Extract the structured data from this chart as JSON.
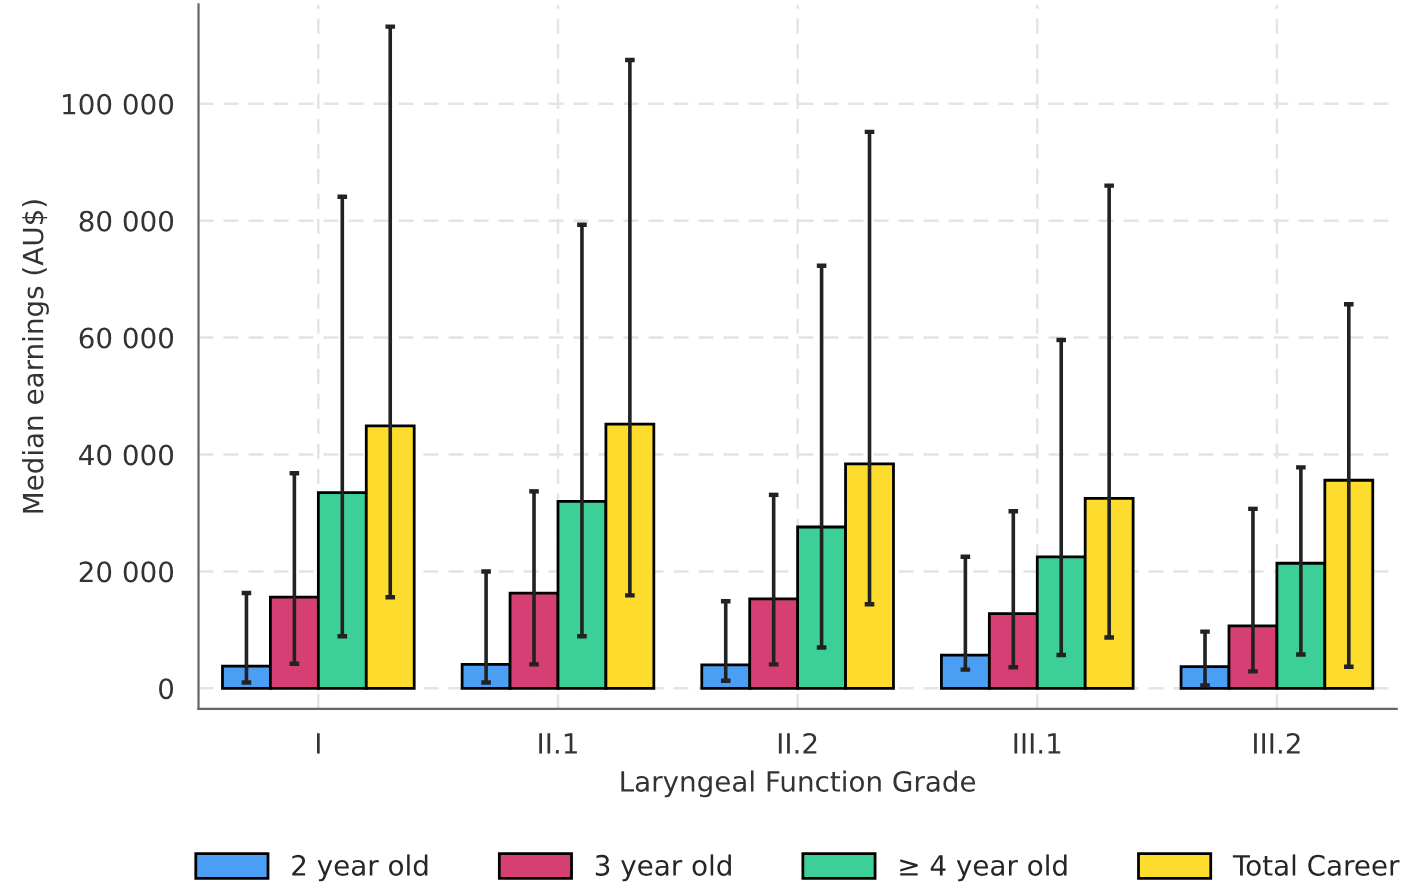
{
  "chart_data": {
    "type": "bar",
    "xlabel": "Laryngeal Function Grade",
    "ylabel": "Median earnings (AU$)",
    "categories": [
      "I",
      "II.1",
      "II.2",
      "III.1",
      "III.2"
    ],
    "series": [
      {
        "name": "2 year old",
        "color": "#4a9ff5",
        "values": [
          3800,
          4100,
          4000,
          5700,
          3700
        ],
        "errors": [
          [
            1000,
            16300
          ],
          [
            1000,
            20000
          ],
          [
            1300,
            14900
          ],
          [
            3200,
            22500
          ],
          [
            500,
            9700
          ]
        ]
      },
      {
        "name": "3 year old",
        "color": "#d63f74",
        "values": [
          15600,
          16300,
          15300,
          12800,
          10700
        ],
        "errors": [
          [
            4200,
            36800
          ],
          [
            4100,
            33700
          ],
          [
            4100,
            33100
          ],
          [
            3600,
            30300
          ],
          [
            2900,
            30700
          ]
        ]
      },
      {
        "name": "≥ 4 year old",
        "color": "#3ccf98",
        "values": [
          33500,
          32000,
          27600,
          22500,
          21400
        ],
        "errors": [
          [
            8900,
            84100
          ],
          [
            8900,
            79300
          ],
          [
            7000,
            72300
          ],
          [
            5700,
            59600
          ],
          [
            5800,
            37800
          ]
        ]
      },
      {
        "name": "Total Career",
        "color": "#fddc2d",
        "values": [
          44900,
          45200,
          38400,
          32500,
          35600
        ],
        "errors": [
          [
            15600,
            113200
          ],
          [
            15900,
            107500
          ],
          [
            14400,
            95200
          ],
          [
            8700,
            86000
          ],
          [
            3700,
            65700
          ]
        ]
      }
    ],
    "ylim": [
      -3500,
      117000
    ],
    "yticks": [
      {
        "value": 0,
        "label": "0"
      },
      {
        "value": 20000,
        "label": "20 000"
      },
      {
        "value": 40000,
        "label": "40 000"
      },
      {
        "value": 60000,
        "label": "60 000"
      },
      {
        "value": 80000,
        "label": "80 000"
      },
      {
        "value": 100000,
        "label": "100 000"
      }
    ],
    "grid": true,
    "legend": "bottom"
  }
}
